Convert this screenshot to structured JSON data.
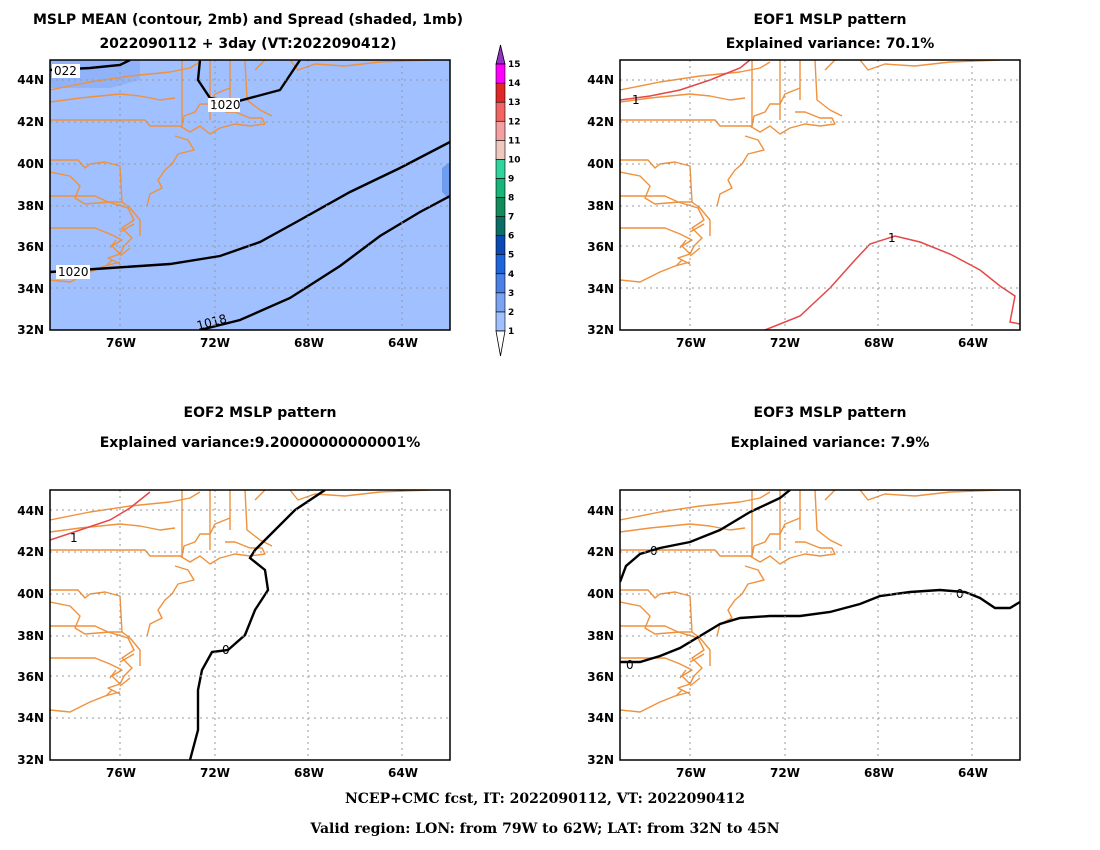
{
  "panels": {
    "p1": {
      "title1": "MSLP MEAN (contour, 2mb) and Spread (shaded, 1mb)",
      "title2": "2022090112 + 3day (VT:2022090412)",
      "contour_labels": [
        "022",
        "1020",
        "1020",
        "1018"
      ]
    },
    "p2": {
      "title1": "EOF1 MSLP pattern",
      "title2": "Explained variance: 70.1%",
      "contour_labels": [
        "1",
        "1"
      ]
    },
    "p3": {
      "title1": "EOF2 MSLP pattern",
      "title2": "Explained variance:9.20000000000001%",
      "contour_labels": [
        "1",
        "0"
      ]
    },
    "p4": {
      "title1": "EOF3 MSLP pattern",
      "title2": "Explained variance: 7.9%",
      "contour_labels": [
        "0",
        "0",
        "0"
      ]
    }
  },
  "axes": {
    "lat_labels": [
      "44N",
      "42N",
      "40N",
      "38N",
      "36N",
      "34N",
      "32N"
    ],
    "lon_labels": [
      "76W",
      "72W",
      "68W",
      "64W"
    ]
  },
  "colorbar": {
    "levels": [
      "1",
      "2",
      "3",
      "4",
      "5",
      "6",
      "7",
      "8",
      "9",
      "10",
      "11",
      "12",
      "13",
      "14",
      "15"
    ],
    "colors": [
      "#c8dcff",
      "#a0c0ff",
      "#7aa4f0",
      "#4a80e8",
      "#1e64dc",
      "#0b4ab4",
      "#0a6e64",
      "#128c5a",
      "#18b478",
      "#30d49c",
      "#f0c8c0",
      "#f4a0a0",
      "#f06464",
      "#e02828",
      "#ff00ff",
      "#9632c8"
    ]
  },
  "footer": {
    "line1": "NCEP+CMC fcst, IT: 2022090112, VT: 2022090412",
    "line2": "Valid region: LON: from 79W to 62W; LAT: from 32N to 45N"
  },
  "colors": {
    "coast": "#f0913c",
    "spread_fill": "#a0c0ff",
    "eof_positive": "#e64646",
    "contour": "#000000"
  }
}
